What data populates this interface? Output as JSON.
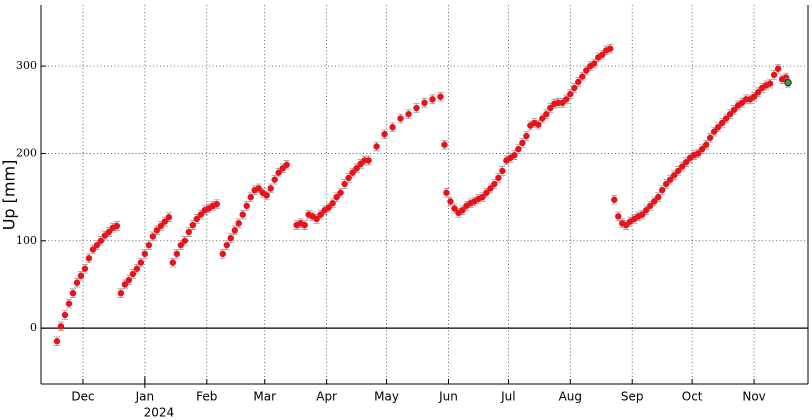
{
  "chart_data": {
    "type": "scatter",
    "y_label": "Up [mm]",
    "x_annotation": "2024",
    "xlim": [
      -21,
      363
    ],
    "ylim": [
      -64,
      370
    ],
    "xticks": [
      {
        "value": 0,
        "label": "Dec"
      },
      {
        "value": 31,
        "label": "Jan"
      },
      {
        "value": 62,
        "label": "Feb"
      },
      {
        "value": 91,
        "label": "Mar"
      },
      {
        "value": 122,
        "label": "Apr"
      },
      {
        "value": 152,
        "label": "May"
      },
      {
        "value": 183,
        "label": "Jun"
      },
      {
        "value": 213,
        "label": "Jul"
      },
      {
        "value": 244,
        "label": "Aug"
      },
      {
        "value": 275,
        "label": "Sep"
      },
      {
        "value": 305,
        "label": "Oct"
      },
      {
        "value": 336,
        "label": "Nov"
      }
    ],
    "yticks": [
      0,
      100,
      200,
      300
    ],
    "grid": true,
    "series": [
      {
        "color": "#e8121b",
        "error": 5,
        "x": [
          -13,
          -11,
          -9,
          -7,
          -5,
          -3,
          -1,
          1,
          3,
          5,
          7,
          9,
          11,
          13,
          15,
          17,
          19,
          21,
          23,
          25,
          27,
          29,
          31,
          33,
          35,
          37,
          39,
          41,
          43,
          45,
          47,
          49,
          51,
          53,
          55,
          57,
          59,
          61,
          63,
          65,
          67,
          70,
          72,
          74,
          76,
          78,
          80,
          82,
          84,
          86,
          88,
          90,
          92,
          94,
          96,
          98,
          100,
          102,
          107,
          109,
          111,
          113,
          115,
          117,
          119,
          121,
          123,
          125,
          127,
          129,
          131,
          133,
          135,
          137,
          139,
          141,
          143,
          147,
          151,
          155,
          159,
          163,
          167,
          171,
          175,
          179,
          181,
          182,
          184,
          186,
          188,
          190,
          192,
          194,
          196,
          198,
          200,
          202,
          204,
          206,
          208,
          210,
          212,
          214,
          216,
          218,
          220,
          222,
          224,
          226,
          228,
          230,
          232,
          234,
          236,
          238,
          240,
          242,
          244,
          246,
          248,
          250,
          252,
          254,
          256,
          258,
          260,
          262,
          264,
          266,
          268,
          270,
          272,
          274,
          276,
          278,
          280,
          282,
          284,
          286,
          288,
          290,
          292,
          294,
          296,
          298,
          300,
          302,
          304,
          306,
          308,
          310,
          312,
          314,
          316,
          318,
          320,
          322,
          324,
          326,
          328,
          330,
          332,
          334,
          336,
          338,
          340,
          342,
          344,
          346,
          348,
          350,
          352
        ],
        "values": [
          -15,
          2,
          15,
          28,
          40,
          52,
          60,
          68,
          80,
          90,
          95,
          100,
          106,
          110,
          115,
          117,
          40,
          50,
          55,
          62,
          68,
          75,
          85,
          95,
          105,
          112,
          117,
          122,
          127,
          75,
          85,
          95,
          100,
          110,
          118,
          125,
          130,
          135,
          137,
          140,
          142,
          85,
          95,
          103,
          112,
          120,
          130,
          140,
          150,
          158,
          160,
          155,
          152,
          160,
          170,
          178,
          183,
          187,
          118,
          120,
          118,
          130,
          128,
          125,
          130,
          135,
          138,
          143,
          150,
          155,
          165,
          172,
          178,
          183,
          188,
          192,
          192,
          208,
          222,
          230,
          240,
          245,
          252,
          258,
          262,
          265,
          210,
          155,
          145,
          137,
          132,
          135,
          140,
          143,
          145,
          148,
          150,
          155,
          160,
          165,
          172,
          180,
          192,
          195,
          198,
          205,
          212,
          220,
          232,
          235,
          233,
          240,
          245,
          252,
          257,
          258,
          258,
          262,
          268,
          275,
          282,
          288,
          295,
          300,
          303,
          310,
          313,
          318,
          320,
          147,
          128,
          120,
          118,
          122,
          125,
          128,
          130,
          135,
          140,
          145,
          150,
          158,
          165,
          170,
          175,
          180,
          185,
          190,
          195,
          198,
          200,
          205,
          210,
          218,
          225,
          230,
          235,
          240,
          245,
          250,
          255,
          258,
          262,
          262,
          265,
          270,
          275,
          278,
          280,
          290,
          297,
          285,
          287
        ]
      },
      {
        "color": "#3aa335",
        "error": 5,
        "x": [
          353
        ],
        "values": [
          281
        ]
      }
    ]
  }
}
